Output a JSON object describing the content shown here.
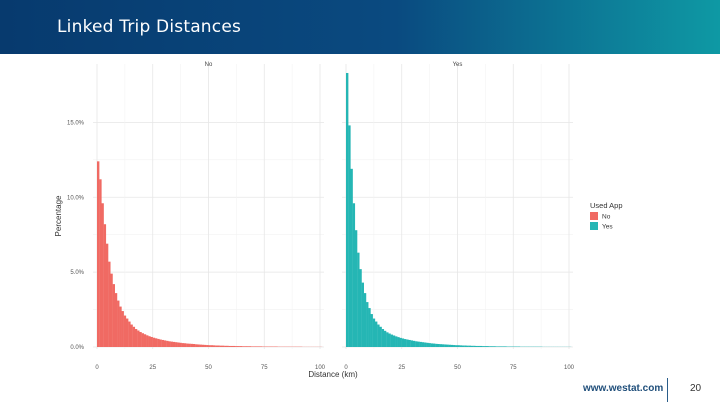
{
  "slide": {
    "title": "Linked Trip Distances",
    "footer_url": "www.westat.com",
    "page_number": "20"
  },
  "chart_data": {
    "type": "bar",
    "subtype": "histogram-facets",
    "ylabel": "Percentage",
    "xlabel": "Distance (km)",
    "y_ticks": [
      "0.0%",
      "5.0%",
      "10.0%",
      "15.0%"
    ],
    "y_tick_values": [
      0,
      5,
      10,
      15
    ],
    "x_ticks": [
      "0",
      "25",
      "50",
      "75",
      "100"
    ],
    "x_tick_values": [
      0,
      25,
      50,
      75,
      100
    ],
    "xlim": [
      0,
      100
    ],
    "ylim": [
      0,
      18.5
    ],
    "grid": true,
    "legend": {
      "title": "Used App",
      "position": "right",
      "items": [
        {
          "label": "No",
          "color": "#f06a63"
        },
        {
          "label": "Yes",
          "color": "#25b6b4"
        }
      ]
    },
    "facets": [
      {
        "label": "No",
        "color": "#f06a63",
        "bin_width": 1,
        "x": [
          0,
          1,
          2,
          3,
          4,
          5,
          6,
          7,
          8,
          9,
          10,
          11,
          12,
          13,
          14,
          15,
          16,
          17,
          18,
          19,
          20,
          21,
          22,
          23,
          24,
          25,
          26,
          27,
          28,
          29,
          30,
          31,
          32,
          33,
          34,
          35,
          36,
          37,
          38,
          39,
          40,
          41,
          42,
          43,
          44,
          45,
          46,
          47,
          48,
          49,
          50,
          51,
          52,
          53,
          54,
          55,
          56,
          57,
          58,
          59,
          60,
          61,
          62,
          63,
          64,
          65,
          66,
          67,
          68,
          69,
          70,
          71,
          72,
          73,
          74,
          75,
          76,
          77,
          78,
          79,
          80,
          81,
          82,
          83,
          84,
          85,
          86,
          87,
          88,
          89,
          90,
          91,
          92,
          93,
          94,
          95,
          96,
          97,
          98,
          99,
          100
        ],
        "values": [
          12.4,
          11.2,
          9.6,
          8.2,
          6.9,
          5.7,
          4.9,
          4.2,
          3.6,
          3.1,
          2.7,
          2.4,
          2.1,
          1.9,
          1.7,
          1.5,
          1.35,
          1.2,
          1.1,
          1.0,
          0.92,
          0.85,
          0.78,
          0.72,
          0.67,
          0.62,
          0.58,
          0.54,
          0.5,
          0.47,
          0.44,
          0.41,
          0.38,
          0.36,
          0.34,
          0.32,
          0.3,
          0.28,
          0.26,
          0.25,
          0.23,
          0.22,
          0.21,
          0.2,
          0.18,
          0.17,
          0.16,
          0.15,
          0.14,
          0.13,
          0.12,
          0.12,
          0.11,
          0.1,
          0.1,
          0.09,
          0.09,
          0.08,
          0.08,
          0.07,
          0.07,
          0.07,
          0.06,
          0.06,
          0.06,
          0.05,
          0.05,
          0.05,
          0.05,
          0.04,
          0.04,
          0.04,
          0.04,
          0.04,
          0.03,
          0.03,
          0.03,
          0.03,
          0.03,
          0.03,
          0.03,
          0.02,
          0.02,
          0.02,
          0.02,
          0.02,
          0.02,
          0.02,
          0.02,
          0.02,
          0.02,
          0.02,
          0.01,
          0.01,
          0.01,
          0.01,
          0.01,
          0.01,
          0.01,
          0.01,
          0.01
        ]
      },
      {
        "label": "Yes",
        "color": "#25b6b4",
        "bin_width": 1,
        "x": [
          0,
          1,
          2,
          3,
          4,
          5,
          6,
          7,
          8,
          9,
          10,
          11,
          12,
          13,
          14,
          15,
          16,
          17,
          18,
          19,
          20,
          21,
          22,
          23,
          24,
          25,
          26,
          27,
          28,
          29,
          30,
          31,
          32,
          33,
          34,
          35,
          36,
          37,
          38,
          39,
          40,
          41,
          42,
          43,
          44,
          45,
          46,
          47,
          48,
          49,
          50,
          51,
          52,
          53,
          54,
          55,
          56,
          57,
          58,
          59,
          60,
          61,
          62,
          63,
          64,
          65,
          66,
          67,
          68,
          69,
          70,
          71,
          72,
          73,
          74,
          75,
          76,
          77,
          78,
          79,
          80,
          81,
          82,
          83,
          84,
          85,
          86,
          87,
          88,
          89,
          90,
          91,
          92,
          93,
          94,
          95,
          96,
          97,
          98,
          99,
          100
        ],
        "values": [
          18.3,
          14.8,
          11.9,
          9.6,
          7.8,
          6.3,
          5.2,
          4.3,
          3.6,
          3.0,
          2.6,
          2.2,
          1.9,
          1.7,
          1.5,
          1.35,
          1.2,
          1.08,
          0.98,
          0.9,
          0.83,
          0.77,
          0.71,
          0.66,
          0.61,
          0.57,
          0.53,
          0.5,
          0.47,
          0.44,
          0.41,
          0.38,
          0.36,
          0.34,
          0.32,
          0.3,
          0.28,
          0.26,
          0.24,
          0.23,
          0.21,
          0.2,
          0.19,
          0.18,
          0.17,
          0.16,
          0.15,
          0.14,
          0.13,
          0.12,
          0.12,
          0.11,
          0.1,
          0.1,
          0.09,
          0.09,
          0.08,
          0.08,
          0.07,
          0.07,
          0.07,
          0.06,
          0.06,
          0.06,
          0.05,
          0.05,
          0.05,
          0.04,
          0.04,
          0.04,
          0.04,
          0.04,
          0.03,
          0.03,
          0.03,
          0.03,
          0.03,
          0.03,
          0.02,
          0.02,
          0.02,
          0.02,
          0.02,
          0.02,
          0.02,
          0.02,
          0.02,
          0.02,
          0.01,
          0.01,
          0.01,
          0.01,
          0.01,
          0.01,
          0.01,
          0.01,
          0.01,
          0.01,
          0.01,
          0.01,
          0.01
        ]
      }
    ]
  }
}
